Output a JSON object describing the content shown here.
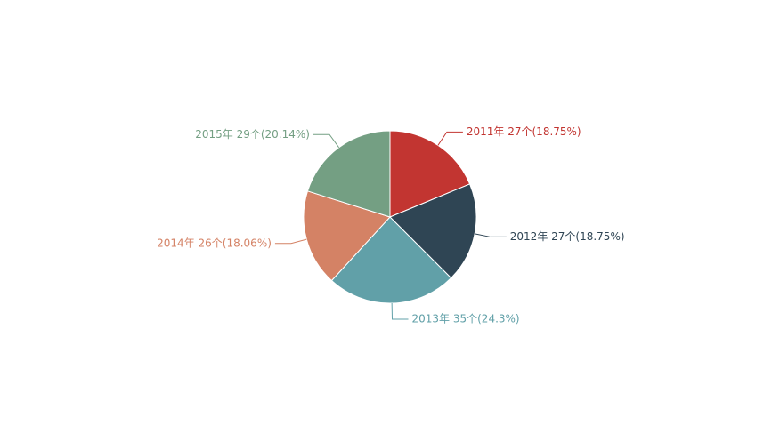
{
  "chart_data": {
    "type": "pie",
    "values": [
      27,
      27,
      35,
      26,
      29
    ],
    "value_labels": [
      "2011年 27个(18.75%)",
      "2012年 27个(18.75%)",
      "2013年 35个(24.3%)",
      "2014年 26个(18.06%)",
      "2015年 29个(20.14%)"
    ],
    "colors": [
      "#c23531",
      "#2f4554",
      "#61a0a8",
      "#d48265",
      "#749f83"
    ]
  }
}
